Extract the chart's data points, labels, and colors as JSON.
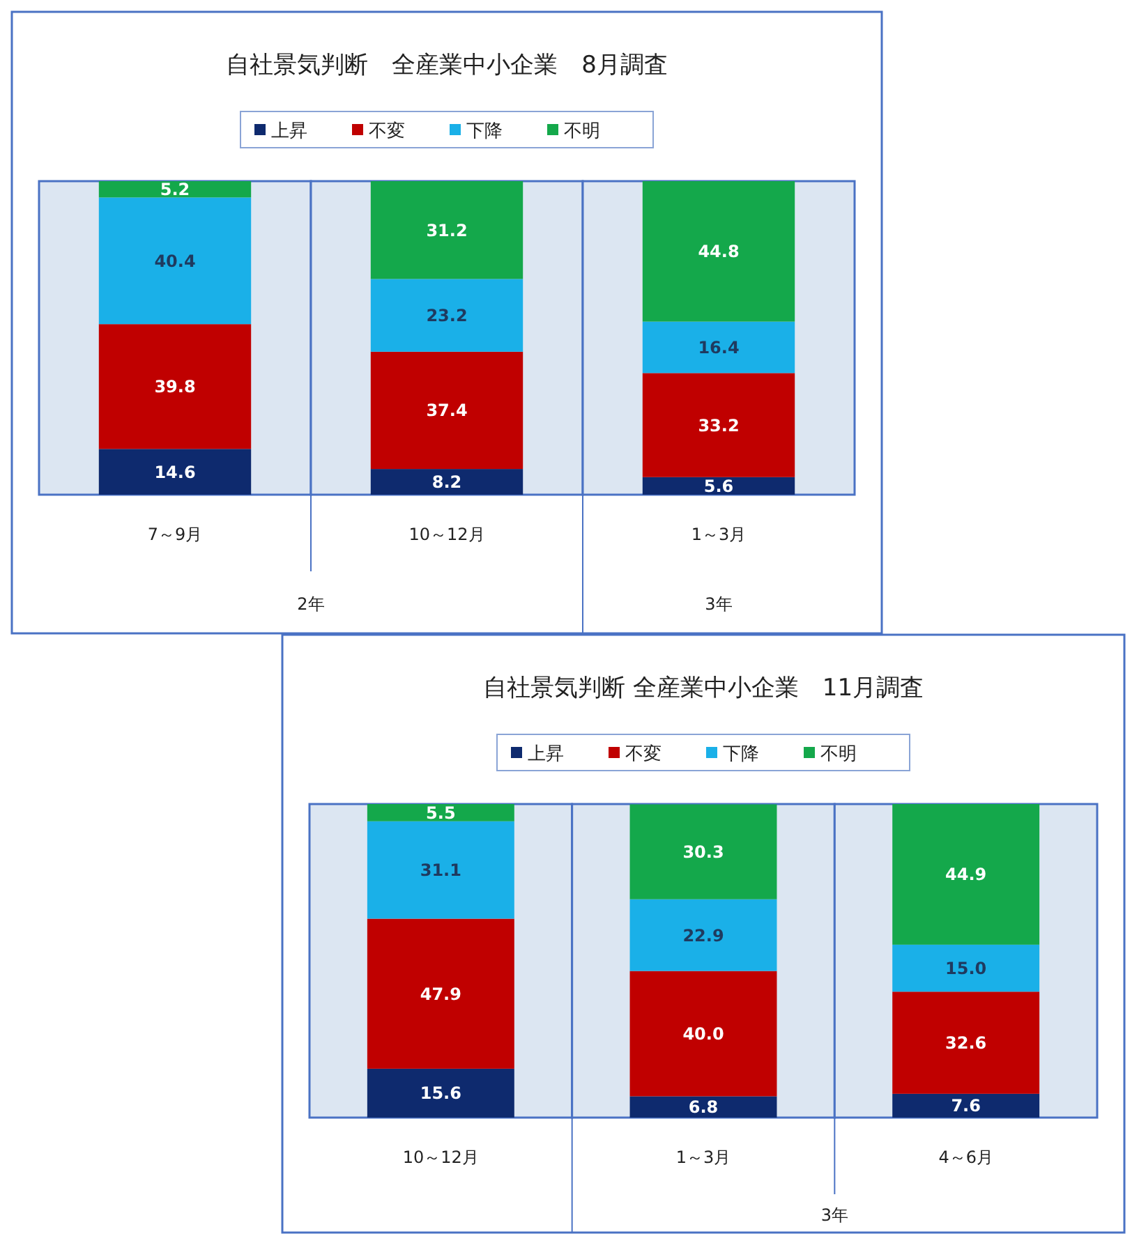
{
  "chart_data": [
    {
      "type": "bar",
      "title": "自社景気判断　全産業中小企業　8月調査",
      "categories": [
        "7～9月",
        "10～12月",
        "1～3月"
      ],
      "stacked": true,
      "data_labels": true,
      "legend": "top",
      "ylim": [
        0,
        100
      ],
      "series": [
        {
          "name": "上昇",
          "color": "#0e2a6e",
          "values": [
            14.6,
            8.2,
            5.6
          ]
        },
        {
          "name": "不変",
          "color": "#c00000",
          "values": [
            39.8,
            37.4,
            33.2
          ]
        },
        {
          "name": "下降",
          "color": "#1ab0e8",
          "values": [
            40.4,
            23.2,
            16.4
          ]
        },
        {
          "name": "不明",
          "color": "#14a84b",
          "values": [
            5.2,
            31.2,
            44.8
          ]
        }
      ],
      "annotations": [
        "2年",
        "3年"
      ]
    },
    {
      "type": "bar",
      "title": "自社景気判断 全産業中小企業　11月調査",
      "categories": [
        "10～12月",
        "1～3月",
        "4～6月"
      ],
      "stacked": true,
      "legend": "top",
      "ylim": [
        0,
        100.1
      ],
      "series": [
        {
          "name": "上昇",
          "color": "#0e2a6e",
          "values": [
            15.6,
            6.8,
            7.6
          ],
          "value_labels": [
            "15.6",
            "6.8",
            "7.6"
          ]
        },
        {
          "name": "不変",
          "color": "#c00000",
          "values": [
            47.9,
            40.0,
            32.6
          ],
          "value_labels": [
            "47.9",
            "40.0",
            "32.6"
          ]
        },
        {
          "name": "下降",
          "color": "#1ab0e8",
          "values": [
            31.1,
            22.9,
            15.0
          ],
          "value_labels": [
            "31.1",
            "22.9",
            "15.0"
          ]
        },
        {
          "name": "不明",
          "color": "#14a84b",
          "values": [
            5.5,
            30.3,
            44.9
          ],
          "value_labels": [
            "5.5",
            "30.3",
            "44.9"
          ]
        }
      ],
      "annotations": [
        "3年"
      ]
    }
  ]
}
